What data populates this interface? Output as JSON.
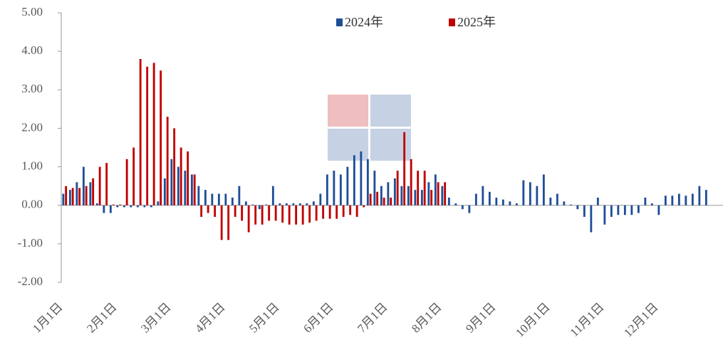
{
  "chart_data": {
    "type": "bar",
    "categories": [
      "1月1日",
      null,
      null,
      null,
      null,
      null,
      null,
      null,
      "2月1日",
      null,
      null,
      null,
      null,
      null,
      null,
      null,
      "3月1日",
      null,
      null,
      null,
      null,
      null,
      null,
      null,
      "4月1日",
      null,
      null,
      null,
      null,
      null,
      null,
      null,
      "5月1日",
      null,
      null,
      null,
      null,
      null,
      null,
      null,
      "6月1日",
      null,
      null,
      null,
      null,
      null,
      null,
      null,
      "7月1日",
      null,
      null,
      null,
      null,
      null,
      null,
      null,
      "8月1日",
      null,
      null,
      null,
      null,
      null,
      null,
      null,
      "9月1日",
      null,
      null,
      null,
      null,
      null,
      null,
      null,
      "10月1日",
      null,
      null,
      null,
      null,
      null,
      null,
      null,
      "11月1日",
      null,
      null,
      null,
      null,
      null,
      null,
      null,
      "12月1日",
      null,
      null,
      null,
      null,
      null,
      null,
      null
    ],
    "series": [
      {
        "name": "2024年",
        "color": "#1f4e96",
        "values": [
          0.3,
          0.4,
          0.6,
          1.0,
          0.6,
          0.05,
          -0.2,
          -0.2,
          -0.05,
          -0.05,
          -0.05,
          -0.05,
          -0.05,
          -0.05,
          0.1,
          0.7,
          1.2,
          1.0,
          0.9,
          0.8,
          0.5,
          0.4,
          0.3,
          0.3,
          0.3,
          0.2,
          0.5,
          0.1,
          0.02,
          -0.1,
          0.02,
          0.5,
          0.05,
          0.05,
          0.05,
          0.05,
          0.05,
          0.1,
          0.3,
          0.8,
          0.9,
          0.8,
          1.0,
          1.3,
          1.4,
          1.2,
          0.9,
          0.5,
          0.6,
          0.7,
          0.5,
          0.5,
          0.4,
          0.4,
          0.6,
          0.8,
          0.5,
          0.2,
          0.05,
          -0.1,
          -0.2,
          0.3,
          0.5,
          0.35,
          0.2,
          0.15,
          0.1,
          0.05,
          0.65,
          0.6,
          0.5,
          0.8,
          0.2,
          0.3,
          0.1,
          0.02,
          -0.1,
          -0.3,
          -0.7,
          0.2,
          -0.5,
          -0.3,
          -0.25,
          -0.25,
          -0.25,
          -0.2,
          0.2,
          0.05,
          -0.25,
          0.25,
          0.25,
          0.3,
          0.25,
          0.3,
          0.5,
          0.4
        ]
      },
      {
        "name": "2025年",
        "color": "#c00000",
        "values": [
          0.5,
          0.45,
          0.45,
          0.5,
          0.7,
          1.0,
          1.1,
          0.02,
          0.02,
          1.2,
          1.5,
          3.8,
          3.6,
          3.7,
          3.5,
          2.3,
          2.0,
          1.5,
          1.4,
          0.8,
          -0.3,
          -0.2,
          -0.3,
          -0.9,
          -0.9,
          -0.3,
          -0.4,
          -0.7,
          -0.5,
          -0.5,
          -0.4,
          -0.4,
          -0.45,
          -0.5,
          -0.5,
          -0.5,
          -0.45,
          -0.4,
          -0.35,
          -0.35,
          -0.35,
          -0.3,
          -0.25,
          -0.3,
          -0.05,
          0.3,
          0.35,
          0.2,
          0.2,
          0.9,
          1.9,
          1.2,
          0.9,
          0.9,
          0.4,
          0.6,
          0.6,
          null,
          null,
          null,
          null,
          null,
          null,
          null,
          null,
          null,
          null,
          null,
          null,
          null,
          null,
          null,
          null,
          null,
          null,
          null,
          null,
          null,
          null,
          null,
          null,
          null,
          null,
          null,
          null,
          null,
          null,
          null,
          null,
          null,
          null,
          null,
          null,
          null,
          null,
          null
        ]
      }
    ],
    "ylim": [
      -2,
      5
    ],
    "yticks": [
      {
        "value": -2,
        "label": "-2.00"
      },
      {
        "value": -1,
        "label": "-1.00"
      },
      {
        "value": 0,
        "label": "0.00"
      },
      {
        "value": 1,
        "label": "1.00"
      },
      {
        "value": 2,
        "label": "2.00"
      },
      {
        "value": 3,
        "label": "3.00"
      },
      {
        "value": 4,
        "label": "4.00"
      },
      {
        "value": 5,
        "label": "5.00"
      }
    ],
    "legend": "top"
  }
}
